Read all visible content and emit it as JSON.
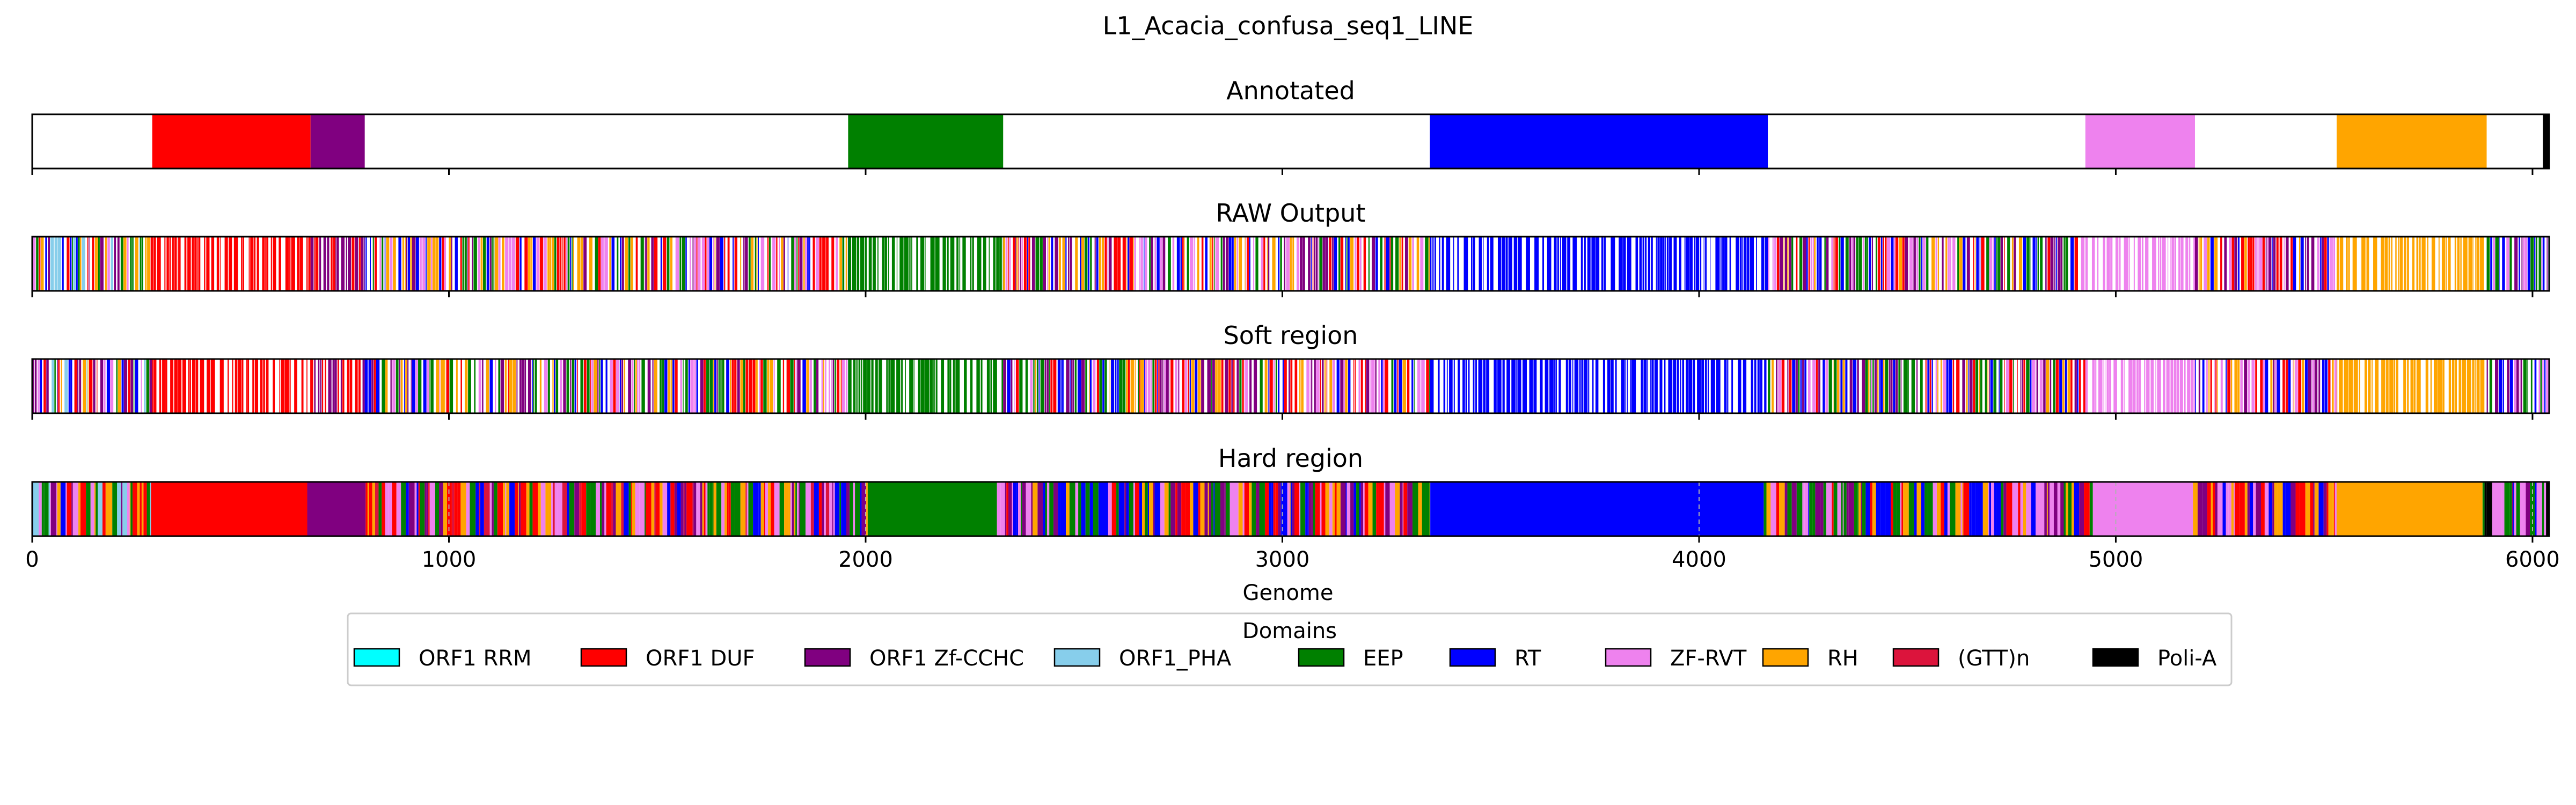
{
  "chart_data": {
    "type": "bar",
    "title": "L1_Acacia_confusa_seq1_LINE",
    "xlabel": "Genome",
    "xlim": [
      0,
      6040
    ],
    "xticks": [
      0,
      1000,
      2000,
      3000,
      4000,
      5000,
      6000
    ],
    "legend": {
      "title": "Domains",
      "placement": "below",
      "entries": [
        {
          "name": "ORF1 RRM",
          "color": "#00ffff"
        },
        {
          "name": "ORF1 DUF",
          "color": "#ff0000"
        },
        {
          "name": "ORF1 Zf-CCHC",
          "color": "#800080"
        },
        {
          "name": "ORF1_PHA",
          "color": "#87ceeb"
        },
        {
          "name": "EEP",
          "color": "#008000"
        },
        {
          "name": "RT",
          "color": "#0000ff"
        },
        {
          "name": "ZF-RVT",
          "color": "#ee82ee"
        },
        {
          "name": "RH",
          "color": "#ffa500"
        },
        {
          "name": "(GTT)n",
          "color": "#dc143c"
        },
        {
          "name": "Poli-A",
          "color": "#000000"
        }
      ]
    },
    "panels": [
      {
        "title": "Annotated",
        "segments": [
          {
            "domain": "ORF1 DUF",
            "start": 288,
            "end": 668
          },
          {
            "domain": "ORF1 Zf-CCHC",
            "start": 668,
            "end": 798
          },
          {
            "domain": "EEP",
            "start": 1958,
            "end": 2330
          },
          {
            "domain": "RT",
            "start": 3354,
            "end": 4165
          },
          {
            "domain": "ZF-RVT",
            "start": 4927,
            "end": 5190
          },
          {
            "domain": "RH",
            "start": 5530,
            "end": 5890
          },
          {
            "domain": "Poli-A",
            "start": 6025,
            "end": 6040
          }
        ]
      },
      {
        "title": "RAW Output",
        "pattern": "raw",
        "zones": [
          {
            "start": 0,
            "end": 288,
            "mix": [
              "RT",
              "ORF1 Zf-CCHC",
              "ZF-RVT",
              "ORF1 DUF",
              "RH",
              "ORF1_PHA",
              "EEP"
            ]
          },
          {
            "start": 288,
            "end": 668,
            "mix": [
              "ORF1 DUF"
            ]
          },
          {
            "start": 668,
            "end": 798,
            "mix": [
              "ORF1 Zf-CCHC",
              "ORF1 DUF"
            ]
          },
          {
            "start": 798,
            "end": 1958,
            "mix": [
              "RT",
              "ORF1 Zf-CCHC",
              "EEP",
              "RH",
              "ZF-RVT",
              "ORF1 DUF"
            ]
          },
          {
            "start": 1958,
            "end": 2330,
            "mix": [
              "EEP"
            ]
          },
          {
            "start": 2330,
            "end": 3354,
            "mix": [
              "RT",
              "EEP",
              "ORF1 Zf-CCHC",
              "RH",
              "ZF-RVT",
              "ORF1 DUF"
            ]
          },
          {
            "start": 3354,
            "end": 4165,
            "mix": [
              "RT"
            ]
          },
          {
            "start": 4165,
            "end": 4927,
            "mix": [
              "RT",
              "ORF1 Zf-CCHC",
              "ZF-RVT",
              "ORF1 DUF",
              "RH",
              "EEP"
            ]
          },
          {
            "start": 4927,
            "end": 5190,
            "mix": [
              "ZF-RVT"
            ]
          },
          {
            "start": 5190,
            "end": 5530,
            "mix": [
              "RT",
              "ORF1 Zf-CCHC",
              "ZF-RVT",
              "RH",
              "ORF1 DUF"
            ]
          },
          {
            "start": 5530,
            "end": 5890,
            "mix": [
              "RH"
            ]
          },
          {
            "start": 5890,
            "end": 6040,
            "mix": [
              "RT",
              "ORF1 Zf-CCHC",
              "EEP",
              "ZF-RVT"
            ]
          }
        ]
      },
      {
        "title": "Soft region",
        "pattern": "raw",
        "zones": [
          {
            "start": 0,
            "end": 288,
            "mix": [
              "RT",
              "ORF1 Zf-CCHC",
              "ZF-RVT",
              "ORF1 DUF",
              "RH",
              "ORF1_PHA",
              "EEP"
            ]
          },
          {
            "start": 288,
            "end": 668,
            "mix": [
              "ORF1 DUF"
            ]
          },
          {
            "start": 668,
            "end": 798,
            "mix": [
              "ORF1 Zf-CCHC",
              "ORF1 DUF"
            ]
          },
          {
            "start": 798,
            "end": 1958,
            "mix": [
              "RT",
              "ORF1 Zf-CCHC",
              "EEP",
              "RH",
              "ZF-RVT",
              "ORF1 DUF"
            ]
          },
          {
            "start": 1958,
            "end": 2330,
            "mix": [
              "EEP"
            ]
          },
          {
            "start": 2330,
            "end": 3354,
            "mix": [
              "RT",
              "EEP",
              "ORF1 Zf-CCHC",
              "RH",
              "ZF-RVT",
              "ORF1 DUF"
            ]
          },
          {
            "start": 3354,
            "end": 4165,
            "mix": [
              "RT"
            ]
          },
          {
            "start": 4165,
            "end": 4927,
            "mix": [
              "RT",
              "ORF1 Zf-CCHC",
              "ZF-RVT",
              "ORF1 DUF",
              "RH",
              "EEP"
            ]
          },
          {
            "start": 4927,
            "end": 5190,
            "mix": [
              "ZF-RVT"
            ]
          },
          {
            "start": 5190,
            "end": 5530,
            "mix": [
              "RT",
              "ORF1 Zf-CCHC",
              "ZF-RVT",
              "RH",
              "ORF1 DUF"
            ]
          },
          {
            "start": 5530,
            "end": 5890,
            "mix": [
              "RH"
            ]
          },
          {
            "start": 5890,
            "end": 6040,
            "mix": [
              "RT",
              "ORF1 Zf-CCHC",
              "EEP",
              "ZF-RVT"
            ]
          }
        ]
      },
      {
        "title": "Hard region",
        "pattern": "hard",
        "solids": [
          {
            "domain": "ORF1 DUF",
            "start": 285,
            "end": 660
          },
          {
            "domain": "ORF1 Zf-CCHC",
            "start": 660,
            "end": 800
          },
          {
            "domain": "EEP",
            "start": 2005,
            "end": 2315
          },
          {
            "domain": "RT",
            "start": 3355,
            "end": 4155
          },
          {
            "domain": "ZF-RVT",
            "start": 4945,
            "end": 5185
          },
          {
            "domain": "RH",
            "start": 5530,
            "end": 5880
          }
        ],
        "zones": [
          {
            "start": 0,
            "end": 285,
            "mix": [
              "RT",
              "ORF1 Zf-CCHC",
              "ZF-RVT",
              "ORF1 DUF",
              "RH",
              "EEP",
              "ORF1_PHA"
            ]
          },
          {
            "start": 800,
            "end": 2005,
            "mix": [
              "RT",
              "ORF1 Zf-CCHC",
              "EEP",
              "RH",
              "ZF-RVT",
              "ORF1 DUF",
              "(GTT)n"
            ]
          },
          {
            "start": 2315,
            "end": 3355,
            "mix": [
              "RT",
              "EEP",
              "ORF1 Zf-CCHC",
              "RH",
              "ZF-RVT",
              "ORF1 DUF"
            ]
          },
          {
            "start": 4155,
            "end": 4945,
            "mix": [
              "RT",
              "ORF1 Zf-CCHC",
              "ZF-RVT",
              "ORF1 DUF",
              "RH",
              "EEP"
            ]
          },
          {
            "start": 5185,
            "end": 5530,
            "mix": [
              "RT",
              "ORF1 Zf-CCHC",
              "ZF-RVT",
              "RH",
              "ORF1 DUF"
            ]
          },
          {
            "start": 5880,
            "end": 6040,
            "mix": [
              "RT",
              "ORF1 Zf-CCHC",
              "EEP",
              "ZF-RVT",
              "Poli-A"
            ]
          }
        ],
        "grid": true
      }
    ]
  }
}
